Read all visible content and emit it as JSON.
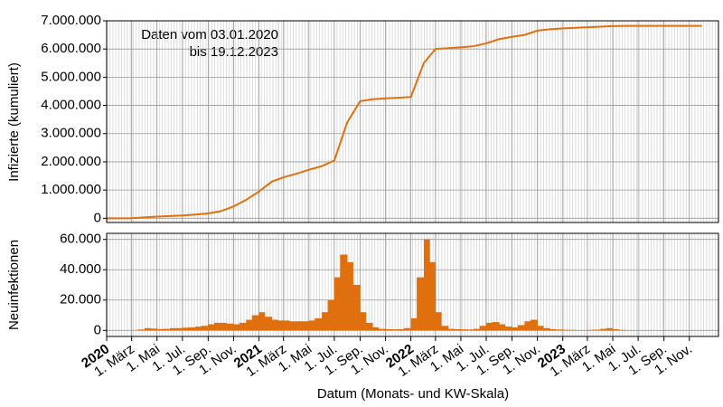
{
  "chart_data": [
    {
      "type": "line",
      "ylabel": "Infizierte (kumuliert)",
      "annotations": [
        "Daten vom 03.01.2020",
        "bis 19.12.2023"
      ],
      "xlim": [
        "2020-01-01",
        "2024-01-10"
      ],
      "ylim": [
        -150000,
        7000000
      ],
      "yticks": [
        {
          "value": 0,
          "label": "0"
        },
        {
          "value": 1000000,
          "label": "1.000.000"
        },
        {
          "value": 2000000,
          "label": "2.000.000"
        },
        {
          "value": 3000000,
          "label": "3.000.000"
        },
        {
          "value": 4000000,
          "label": "4.000.000"
        },
        {
          "value": 5000000,
          "label": "5.000.000"
        },
        {
          "value": 6000000,
          "label": "6.000.000"
        },
        {
          "value": 7000000,
          "label": "7.000.000"
        }
      ],
      "grid": true,
      "x": [
        "2020-01-01",
        "2020-02-01",
        "2020-03-01",
        "2020-04-01",
        "2020-05-01",
        "2020-06-01",
        "2020-07-01",
        "2020-08-01",
        "2020-09-01",
        "2020-10-01",
        "2020-11-01",
        "2020-12-01",
        "2021-01-01",
        "2021-02-01",
        "2021-03-01",
        "2021-04-01",
        "2021-05-01",
        "2021-06-01",
        "2021-07-01",
        "2021-08-01",
        "2021-09-01",
        "2021-10-01",
        "2021-11-01",
        "2021-12-01",
        "2022-01-01",
        "2022-02-01",
        "2022-03-01",
        "2022-04-01",
        "2022-05-01",
        "2022-06-01",
        "2022-07-01",
        "2022-08-01",
        "2022-09-01",
        "2022-10-01",
        "2022-11-01",
        "2022-12-01",
        "2023-01-01",
        "2023-02-01",
        "2023-03-01",
        "2023-04-01",
        "2023-05-01",
        "2023-06-01",
        "2023-07-01",
        "2023-08-01",
        "2023-09-01",
        "2023-10-01",
        "2023-11-01",
        "2023-12-01"
      ],
      "series": [
        {
          "name": "Infizierte",
          "color": "#e0700e",
          "values": [
            0,
            0,
            1000,
            30000,
            60000,
            80000,
            100000,
            130000,
            170000,
            250000,
            420000,
            650000,
            950000,
            1300000,
            1450000,
            1580000,
            1720000,
            1850000,
            2050000,
            3400000,
            4150000,
            4220000,
            4250000,
            4270000,
            4300000,
            5500000,
            6000000,
            6030000,
            6060000,
            6100000,
            6200000,
            6350000,
            6430000,
            6500000,
            6650000,
            6700000,
            6730000,
            6750000,
            6770000,
            6790000,
            6810000,
            6820000,
            6820000,
            6820000,
            6820000,
            6820000,
            6820000,
            6820000
          ]
        }
      ]
    },
    {
      "type": "bar",
      "ylabel": "Neuinfektionen",
      "xlabel": "Datum (Monats- und KW-Skala)",
      "xlim": [
        "2020-01-01",
        "2024-01-10"
      ],
      "ylim": [
        -4000,
        64000
      ],
      "yticks": [
        {
          "value": 0,
          "label": "0"
        },
        {
          "value": 20000,
          "label": "20.000"
        },
        {
          "value": 40000,
          "label": "40.000"
        },
        {
          "value": 60000,
          "label": "60.000"
        }
      ],
      "grid": true,
      "xticks": [
        {
          "value": "2020-01-01",
          "label": "2020"
        },
        {
          "value": "2020-03-01",
          "label": "1. März"
        },
        {
          "value": "2020-05-01",
          "label": "1. Mai"
        },
        {
          "value": "2020-07-01",
          "label": "1. Jul."
        },
        {
          "value": "2020-09-01",
          "label": "1. Sep."
        },
        {
          "value": "2020-11-01",
          "label": "1. Nov."
        },
        {
          "value": "2021-01-01",
          "label": "2021"
        },
        {
          "value": "2021-03-01",
          "label": "1. März"
        },
        {
          "value": "2021-05-01",
          "label": "1. Mai"
        },
        {
          "value": "2021-07-01",
          "label": "1. Jul."
        },
        {
          "value": "2021-09-01",
          "label": "1. Sep."
        },
        {
          "value": "2021-11-01",
          "label": "1. Nov."
        },
        {
          "value": "2022-01-01",
          "label": "2022"
        },
        {
          "value": "2022-03-01",
          "label": "1. März"
        },
        {
          "value": "2022-05-01",
          "label": "1. Mai"
        },
        {
          "value": "2022-07-01",
          "label": "1. Jul."
        },
        {
          "value": "2022-09-01",
          "label": "1. Sep."
        },
        {
          "value": "2022-11-01",
          "label": "1. Nov."
        },
        {
          "value": "2023-01-01",
          "label": "2023"
        },
        {
          "value": "2023-03-01",
          "label": "1. März"
        },
        {
          "value": "2023-05-01",
          "label": "1. Mai"
        },
        {
          "value": "2023-07-01",
          "label": "1. Jul."
        },
        {
          "value": "2023-09-01",
          "label": "1. Sep."
        },
        {
          "value": "2023-11-01",
          "label": "1. Nov."
        }
      ],
      "x": [
        "2020-01-01",
        "2020-01-15",
        "2020-02-01",
        "2020-02-15",
        "2020-03-01",
        "2020-03-15",
        "2020-04-01",
        "2020-04-15",
        "2020-05-01",
        "2020-05-15",
        "2020-06-01",
        "2020-06-15",
        "2020-07-01",
        "2020-07-15",
        "2020-08-01",
        "2020-08-15",
        "2020-09-01",
        "2020-09-15",
        "2020-10-01",
        "2020-10-15",
        "2020-11-01",
        "2020-11-15",
        "2020-12-01",
        "2020-12-15",
        "2021-01-01",
        "2021-01-15",
        "2021-02-01",
        "2021-02-15",
        "2021-03-01",
        "2021-03-15",
        "2021-04-01",
        "2021-04-15",
        "2021-05-01",
        "2021-05-15",
        "2021-06-01",
        "2021-06-15",
        "2021-07-01",
        "2021-07-15",
        "2021-08-01",
        "2021-08-15",
        "2021-09-01",
        "2021-09-15",
        "2021-10-01",
        "2021-10-15",
        "2021-11-01",
        "2021-11-15",
        "2021-12-01",
        "2021-12-15",
        "2022-01-01",
        "2022-01-15",
        "2022-02-01",
        "2022-02-15",
        "2022-03-01",
        "2022-03-15",
        "2022-04-01",
        "2022-04-15",
        "2022-05-01",
        "2022-05-15",
        "2022-06-01",
        "2022-06-15",
        "2022-07-01",
        "2022-07-15",
        "2022-08-01",
        "2022-08-15",
        "2022-09-01",
        "2022-09-15",
        "2022-10-01",
        "2022-10-15",
        "2022-11-01",
        "2022-11-15",
        "2022-12-01",
        "2022-12-15",
        "2023-01-01",
        "2023-01-15",
        "2023-02-01",
        "2023-02-15",
        "2023-03-01",
        "2023-03-15",
        "2023-04-01",
        "2023-04-15",
        "2023-05-01",
        "2023-05-15",
        "2023-06-01",
        "2023-06-15",
        "2023-07-01",
        "2023-07-15",
        "2023-08-01",
        "2023-08-15",
        "2023-09-01",
        "2023-09-15",
        "2023-10-01",
        "2023-10-15",
        "2023-11-01",
        "2023-11-15",
        "2023-12-01",
        "2023-12-15"
      ],
      "series": [
        {
          "name": "Neuinfektionen",
          "color": "#e0700e",
          "values": [
            0,
            0,
            0,
            0,
            50,
            600,
            1500,
            1200,
            900,
            1000,
            1500,
            1500,
            1800,
            2000,
            2500,
            3000,
            4000,
            5000,
            5000,
            4500,
            4000,
            5000,
            7000,
            10000,
            12000,
            9000,
            7000,
            6500,
            6500,
            6000,
            6000,
            6000,
            6500,
            8000,
            12000,
            20000,
            35000,
            50000,
            45000,
            30000,
            12000,
            5000,
            2000,
            1000,
            800,
            700,
            800,
            1500,
            8000,
            35000,
            60000,
            45000,
            12000,
            3000,
            1000,
            800,
            700,
            600,
            1000,
            3000,
            5000,
            5500,
            4000,
            2500,
            2000,
            3500,
            6000,
            7000,
            3000,
            1500,
            800,
            600,
            400,
            300,
            200,
            200,
            300,
            500,
            1000,
            1500,
            800,
            300,
            100,
            50,
            50,
            50,
            50,
            50,
            50,
            50,
            50,
            50,
            50,
            50,
            50,
            50
          ]
        }
      ]
    }
  ]
}
